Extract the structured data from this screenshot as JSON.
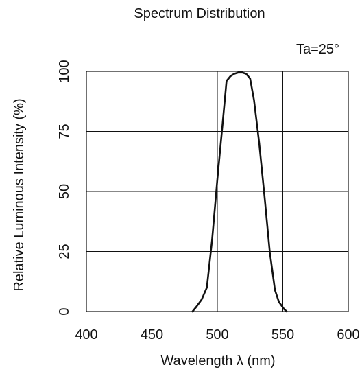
{
  "chart_data": {
    "type": "line",
    "title": "Spectrum Distribution",
    "annotation": "Ta=25°",
    "xlabel": "Wavelength λ (nm)",
    "ylabel": "Relative Luminous Intensity  (%)",
    "xlim": [
      400,
      600
    ],
    "ylim": [
      0,
      100
    ],
    "xticks": [
      "400",
      "450",
      "500",
      "550",
      "600"
    ],
    "yticks": [
      "0",
      "25",
      "50",
      "75",
      "100"
    ],
    "grid": true,
    "series": [
      {
        "x": [
          481,
          484,
          488,
          492,
          496,
          500,
          504,
          507,
          510,
          513,
          516,
          519,
          522,
          525,
          528,
          532,
          536,
          540,
          544,
          547,
          551,
          553
        ],
        "y": [
          0,
          2,
          5,
          10,
          30,
          55,
          78,
          96,
          98,
          99,
          99.5,
          99.5,
          99,
          97,
          88,
          70,
          48,
          25,
          9,
          4,
          1,
          0
        ]
      }
    ]
  }
}
